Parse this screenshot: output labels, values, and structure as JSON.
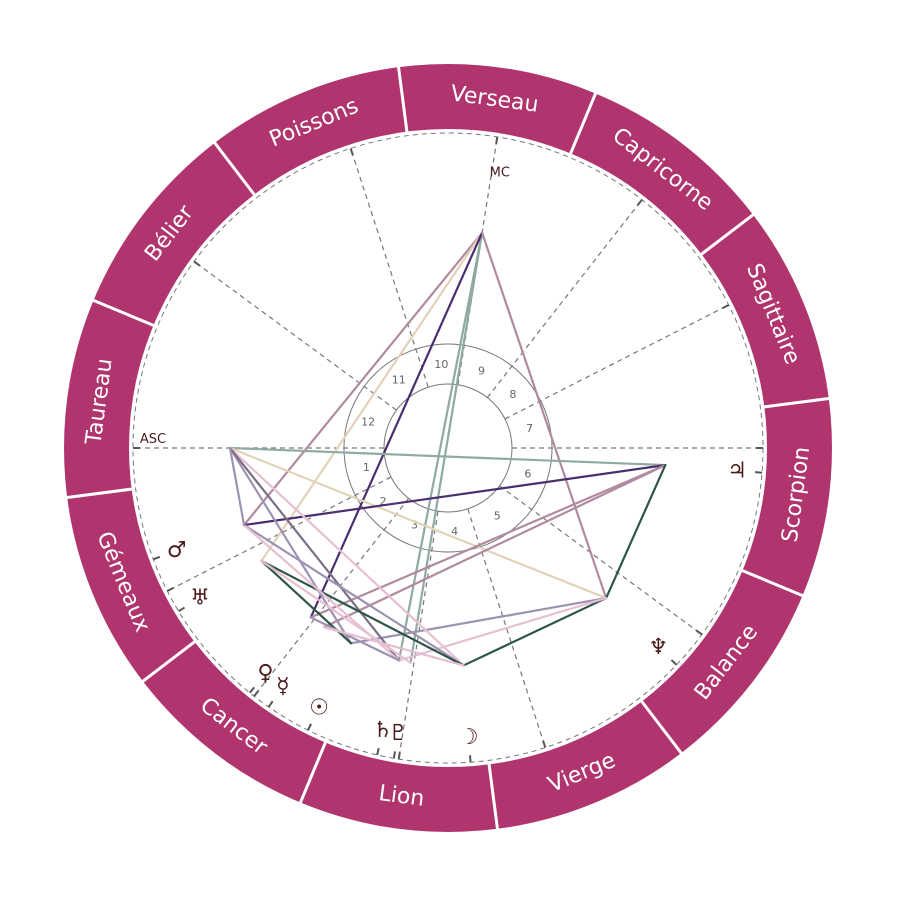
{
  "colors": {
    "ring": "#b0356e",
    "ring_separator": "#ffffff",
    "glyph": "#4a1c1c",
    "dashed": "#777777",
    "inner_circle": "#777777"
  },
  "signs": [
    {
      "name": "Bélier",
      "start_longitude": 0
    },
    {
      "name": "Taureau",
      "start_longitude": 30
    },
    {
      "name": "Gémeaux",
      "start_longitude": 60
    },
    {
      "name": "Cancer",
      "start_longitude": 90
    },
    {
      "name": "Lion",
      "start_longitude": 120
    },
    {
      "name": "Vierge",
      "start_longitude": 150
    },
    {
      "name": "Balance",
      "start_longitude": 180
    },
    {
      "name": "Scorpion",
      "start_longitude": 210
    },
    {
      "name": "Sagittaire",
      "start_longitude": 240
    },
    {
      "name": "Capricorne",
      "start_longitude": 270
    },
    {
      "name": "Verseau",
      "start_longitude": 300
    },
    {
      "name": "Poissons",
      "start_longitude": 330
    }
  ],
  "angles": {
    "asc": {
      "label": "ASC",
      "longitude": 52.6
    },
    "mc": {
      "label": "MC",
      "longitude": 313.6
    }
  },
  "houses": [
    {
      "number": "1",
      "cusp": 52.6
    },
    {
      "number": "2",
      "cusp": 79.6
    },
    {
      "number": "3",
      "cusp": 104.6
    },
    {
      "number": "4",
      "cusp": 133.6
    },
    {
      "number": "5",
      "cusp": 160.6
    },
    {
      "number": "6",
      "cusp": 196.3
    },
    {
      "number": "7",
      "cusp": 232.6
    },
    {
      "number": "8",
      "cusp": 259.6
    },
    {
      "number": "9",
      "cusp": 284.6
    },
    {
      "number": "10",
      "cusp": 313.6
    },
    {
      "number": "11",
      "cusp": 340.6
    },
    {
      "number": "12",
      "cusp": 16.3
    }
  ],
  "planets": [
    {
      "key": "mars",
      "glyph": "♂",
      "longitude": 73.3
    },
    {
      "key": "uranus",
      "glyph": "♅",
      "longitude": 83.8
    },
    {
      "key": "venus",
      "glyph": "♀",
      "longitude": 103.6
    },
    {
      "key": "mercury",
      "glyph": "☿",
      "longitude": 107.9
    },
    {
      "key": "sun",
      "glyph": "☉",
      "longitude": 116.2
    },
    {
      "key": "saturn",
      "glyph": "♄",
      "longitude": 129.6
    },
    {
      "key": "pluto",
      "glyph": "♇",
      "longitude": 132.7
    },
    {
      "key": "moon",
      "glyph": "☽",
      "longitude": 146.7
    },
    {
      "key": "neptune",
      "glyph": "♆",
      "longitude": 189.1
    },
    {
      "key": "jupiter",
      "glyph": "♃",
      "longitude": 228.1
    }
  ],
  "aspect_colors": {
    "teal": "#8fa9a3",
    "mauve": "#b08a9e",
    "beige": "#e3d2b8",
    "purple": "#4b2e6e",
    "green": "#2d5548",
    "lavender": "#9e92b2",
    "pink": "#e7bfd2",
    "grey": "#7b6f86"
  },
  "aspects": [
    {
      "from": "mc",
      "to": "saturn",
      "color": "teal"
    },
    {
      "from": "mc",
      "to": "pluto",
      "color": "teal"
    },
    {
      "from": "mc",
      "to": "mars",
      "color": "mauve"
    },
    {
      "from": "mc",
      "to": "uranus",
      "color": "beige"
    },
    {
      "from": "mc",
      "to": "venus",
      "color": "purple"
    },
    {
      "from": "mc",
      "to": "neptune",
      "color": "mauve"
    },
    {
      "from": "asc",
      "to": "jupiter",
      "color": "teal"
    },
    {
      "from": "asc",
      "to": "neptune",
      "color": "beige"
    },
    {
      "from": "mars",
      "to": "jupiter",
      "color": "purple"
    },
    {
      "from": "jupiter",
      "to": "venus",
      "color": "mauve"
    },
    {
      "from": "jupiter",
      "to": "mercury",
      "color": "mauve"
    },
    {
      "from": "jupiter",
      "to": "neptune",
      "color": "green"
    },
    {
      "from": "neptune",
      "to": "moon",
      "color": "green"
    },
    {
      "from": "neptune",
      "to": "sun",
      "color": "lavender"
    },
    {
      "from": "neptune",
      "to": "saturn",
      "color": "pink"
    },
    {
      "from": "asc",
      "to": "sun",
      "color": "lavender"
    },
    {
      "from": "asc",
      "to": "moon",
      "color": "pink"
    },
    {
      "from": "asc",
      "to": "saturn",
      "color": "grey"
    },
    {
      "from": "mars",
      "to": "moon",
      "color": "lavender"
    },
    {
      "from": "uranus",
      "to": "moon",
      "color": "green"
    },
    {
      "from": "mars",
      "to": "saturn",
      "color": "pink"
    },
    {
      "from": "uranus",
      "to": "sun",
      "color": "green"
    },
    {
      "from": "asc",
      "to": "mars",
      "color": "lavender"
    },
    {
      "from": "venus",
      "to": "saturn",
      "color": "lavender"
    },
    {
      "from": "mercury",
      "to": "moon",
      "color": "pink"
    },
    {
      "from": "uranus",
      "to": "pluto",
      "color": "pink"
    }
  ]
}
